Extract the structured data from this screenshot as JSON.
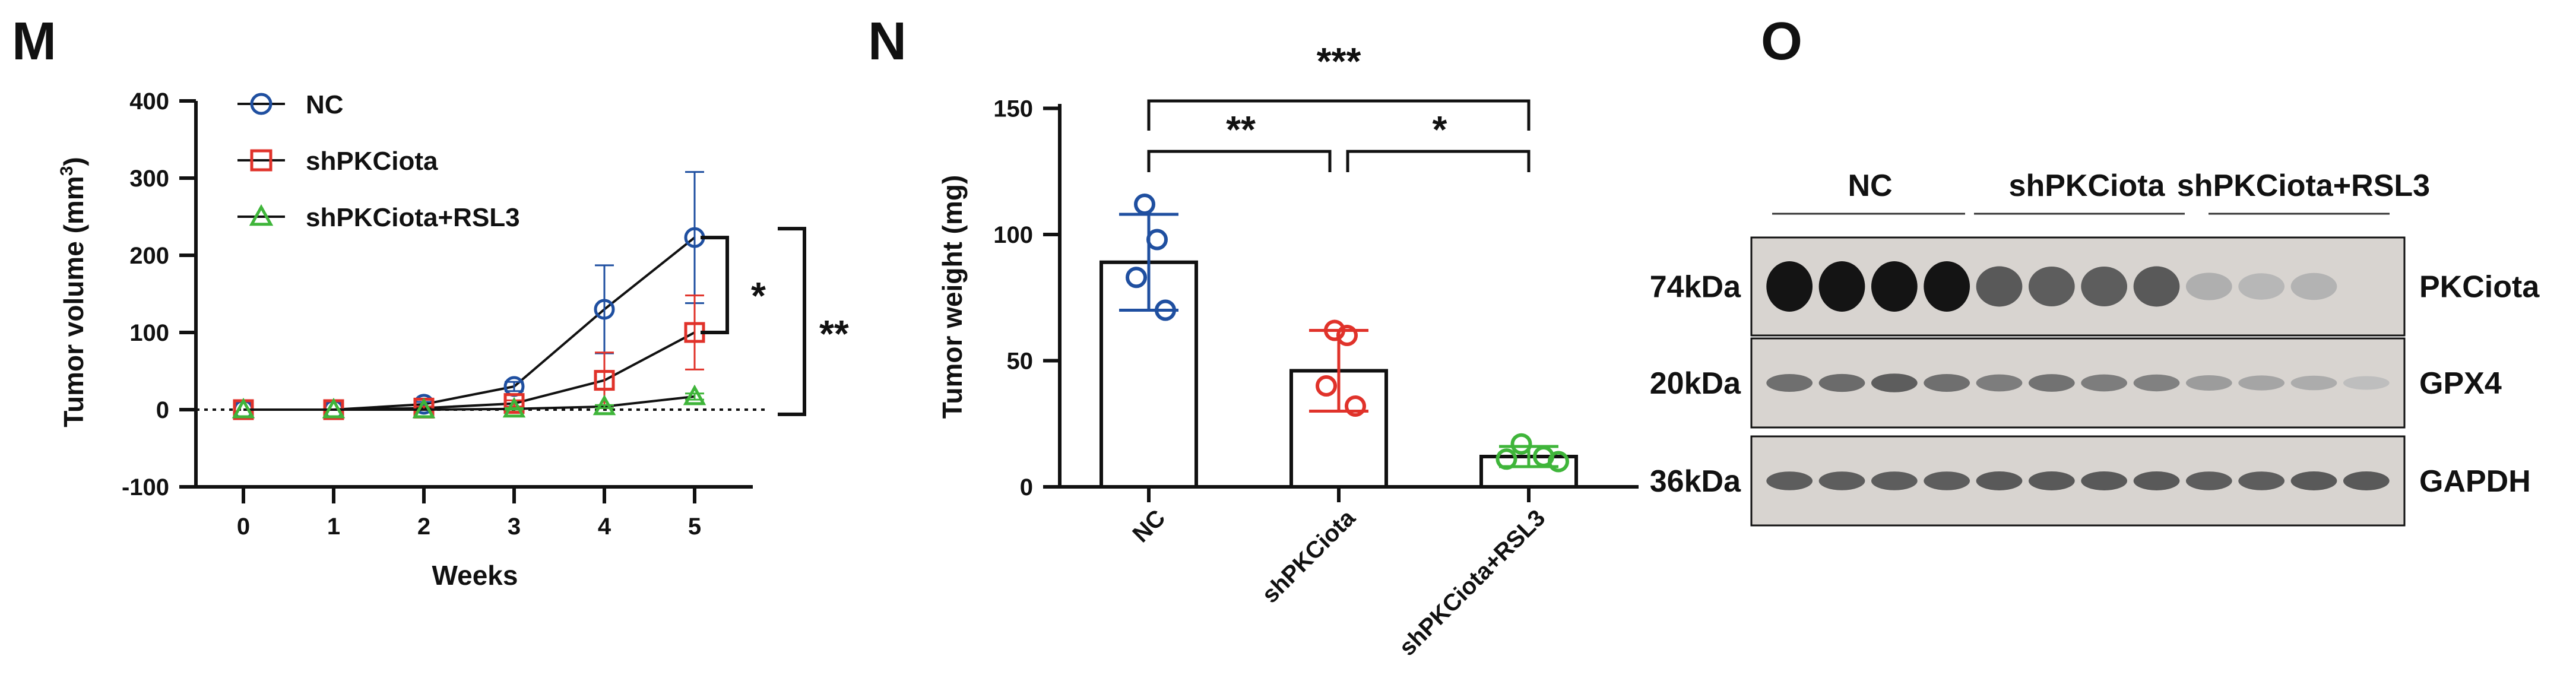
{
  "panels": {
    "M": "M",
    "N": "N",
    "O": "O"
  },
  "chart_data": [
    {
      "panel": "M",
      "type": "line",
      "xlabel": "Weeks",
      "ylabel": "Tumor volume (mm³)",
      "ylabel_main": "Tumor volume (mm",
      "ylabel_sup": "3",
      "ylabel_close": ")",
      "x": [
        0,
        1,
        2,
        3,
        4,
        5
      ],
      "x_ticks": [
        "0",
        "1",
        "2",
        "3",
        "4",
        "5"
      ],
      "ylim": [
        -100,
        400
      ],
      "y_ticks": [
        "-100",
        "0",
        "100",
        "200",
        "300",
        "400"
      ],
      "legend_position": "top-left",
      "series": [
        {
          "name": "NC",
          "marker": "circle",
          "color": "#1f4fa0",
          "values": [
            0,
            0,
            7,
            30,
            130,
            223
          ],
          "errors": [
            0,
            0,
            3,
            6,
            57,
            85
          ]
        },
        {
          "name": "shPKCiota",
          "marker": "square",
          "color": "#e0322a",
          "values": [
            0,
            0,
            2,
            8,
            38,
            100
          ],
          "errors": [
            0,
            0,
            2,
            4,
            36,
            48
          ]
        },
        {
          "name": "shPKCiota+RSL3",
          "marker": "triangle",
          "color": "#3fb53a",
          "values": [
            0,
            0,
            0,
            1,
            4,
            17
          ],
          "errors": [
            0,
            0,
            0,
            1,
            2,
            4
          ]
        }
      ],
      "significance": [
        "*",
        "**"
      ]
    },
    {
      "panel": "N",
      "type": "bar",
      "ylabel": "Tumor weight (mg)",
      "categories": [
        "NC",
        "shPKCiota",
        "shPKCiota+RSL3"
      ],
      "ylim": [
        0,
        150
      ],
      "y_ticks": [
        "0",
        "50",
        "100",
        "150"
      ],
      "values": [
        89,
        46,
        12
      ],
      "errors": [
        19,
        16,
        4
      ],
      "colors": [
        "#1f4fa0",
        "#e0322a",
        "#3fb53a"
      ],
      "points": [
        [
          112,
          98,
          83,
          70
        ],
        [
          62,
          60,
          40,
          32
        ],
        [
          17,
          12,
          11,
          10
        ]
      ],
      "significance": [
        "***",
        "**",
        "*"
      ]
    }
  ],
  "western_blot": {
    "groups": [
      "NC",
      "shPKCiota",
      "shPKCiota+RSL3"
    ],
    "rows": [
      {
        "kda": "74kDa",
        "protein": "PKCiota",
        "intensities": [
          1,
          1,
          1,
          1,
          0.62,
          0.6,
          0.6,
          0.62,
          0.14,
          0.1,
          0.12,
          0
        ]
      },
      {
        "kda": "20kDa",
        "protein": "GPX4",
        "intensities": [
          0.5,
          0.52,
          0.6,
          0.5,
          0.42,
          0.48,
          0.42,
          0.4,
          0.25,
          0.2,
          0.16,
          0.06
        ]
      },
      {
        "kda": "36kDa",
        "protein": "GAPDH",
        "intensities": [
          0.6,
          0.6,
          0.6,
          0.6,
          0.62,
          0.62,
          0.62,
          0.62,
          0.6,
          0.6,
          0.62,
          0.62
        ]
      }
    ]
  }
}
